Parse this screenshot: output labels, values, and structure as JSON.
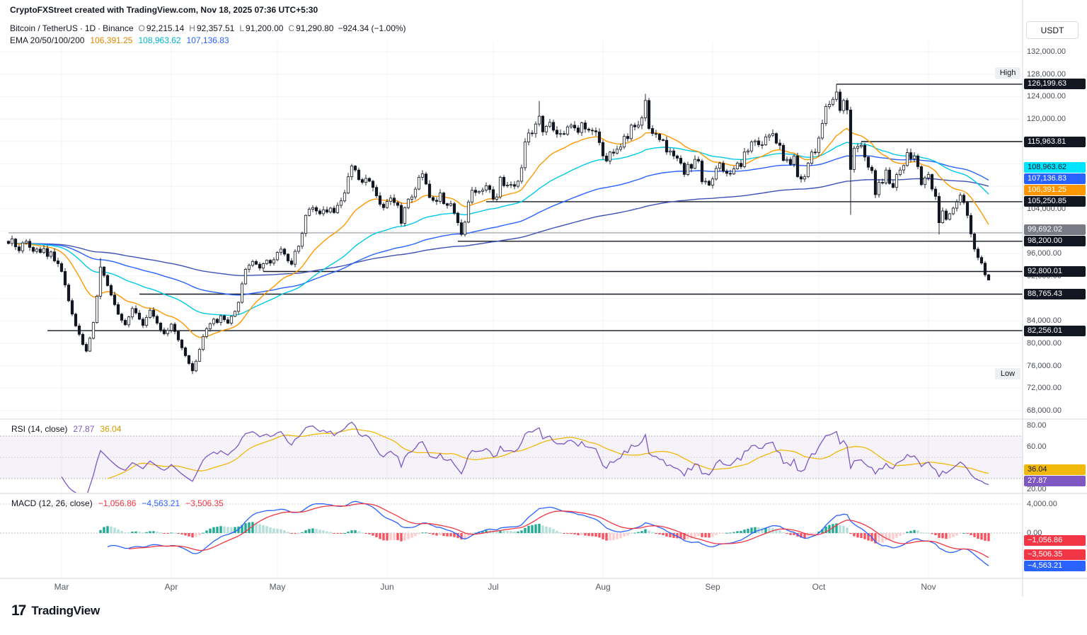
{
  "header": {
    "title": "CryptoFXStreet created with TradingView.com, Nov 18, 2025 07:36 UTC+5:30"
  },
  "toolbar": {
    "currency_label": "USDT"
  },
  "legend": {
    "symbol": "Bitcoin / TetherUS",
    "separator": "·",
    "interval": "1D",
    "exchange": "Binance",
    "open_label": "O",
    "open": "92,215.14",
    "high_label": "H",
    "high": "92,357.51",
    "low_label": "L",
    "low": "91,200.00",
    "close_label": "C",
    "close": "91,290.80",
    "change": "−924.34 (−1.00%)",
    "ema_label": "EMA 20/50/100/200",
    "ema20": "106,391.25",
    "ema50": "108,963.62",
    "ema100": "107,136.83"
  },
  "price_axis": {
    "plain_labels": [
      {
        "text": "132,000.00",
        "v": 132000
      },
      {
        "text": "128,000.00",
        "v": 128000
      },
      {
        "text": "124,000.00",
        "v": 124000
      },
      {
        "text": "120,000.00",
        "v": 120000
      },
      {
        "text": "104,000.00",
        "v": 104000
      },
      {
        "text": "96,000.00",
        "v": 96000
      },
      {
        "text": "92,000.00",
        "v": 92000
      },
      {
        "text": "84,000.00",
        "v": 84000
      },
      {
        "text": "80,000.00",
        "v": 80000
      },
      {
        "text": "76,000.00",
        "v": 76000
      },
      {
        "text": "72,000.00",
        "v": 72000
      },
      {
        "text": "68,000.00",
        "v": 68000
      }
    ],
    "badges": [
      {
        "text": "126,199.63",
        "v": 126199.63,
        "bg": "#131722",
        "fg": "#ffffff"
      },
      {
        "text": "115,963.81",
        "v": 115963.81,
        "bg": "#131722",
        "fg": "#ffffff"
      },
      {
        "text": "108,963.62",
        "v": 108963.62,
        "bg": "#00e5ff",
        "fg": "#131722"
      },
      {
        "text": "107,136.83",
        "v": 107136.83,
        "bg": "#2962ff",
        "fg": "#ffffff"
      },
      {
        "text": "106,391.25",
        "v": 106391.25,
        "bg": "#ff9800",
        "fg": "#ffffff"
      },
      {
        "text": "105,250.85",
        "v": 105250.85,
        "bg": "#131722",
        "fg": "#ffffff"
      },
      {
        "text": "99,692.02",
        "v": 99692.02,
        "bg": "#787b86",
        "fg": "#ffffff"
      },
      {
        "text": "98,200.00",
        "v": 98200,
        "bg": "#131722",
        "fg": "#ffffff"
      },
      {
        "text": "92,800.01",
        "v": 92800.01,
        "bg": "#131722",
        "fg": "#ffffff"
      },
      {
        "text": "88,765.43",
        "v": 88765.43,
        "bg": "#131722",
        "fg": "#ffffff"
      },
      {
        "text": "82,256.01",
        "v": 82256.01,
        "bg": "#131722",
        "fg": "#ffffff"
      }
    ],
    "high_tag": "High",
    "low_tag": "Low"
  },
  "rsi_panel": {
    "title": "RSI (14, close)",
    "value": "27.87",
    "ma_value": "36.04",
    "axis_labels": [
      {
        "text": "80.00",
        "v": 80
      },
      {
        "text": "60.00",
        "v": 60
      },
      {
        "text": "20.00",
        "v": 20
      }
    ],
    "badges": [
      {
        "text": "36.04",
        "v": 36.04,
        "bg": "#f0b90b",
        "fg": "#131722"
      },
      {
        "text": "27.87",
        "v": 27.87,
        "bg": "#7e57c2",
        "fg": "#ffffff"
      }
    ]
  },
  "macd_panel": {
    "title": "MACD (12, 26, close)",
    "hist_value": "−1,056.86",
    "macd_value": "−4,563.21",
    "signal_value": "−3,506.35",
    "axis_labels": [
      {
        "text": "4,000.00",
        "v": 4000
      },
      {
        "text": "0.00",
        "v": 0
      }
    ],
    "badges": [
      {
        "text": "−1,056.86",
        "v": -1056.86,
        "bg": "#f23645",
        "fg": "#ffffff"
      },
      {
        "text": "−3,506.35",
        "v": -3506.35,
        "bg": "#f23645",
        "fg": "#ffffff"
      },
      {
        "text": "−4,563.21",
        "v": -4563.21,
        "bg": "#2962ff",
        "fg": "#ffffff"
      }
    ]
  },
  "time_axis": {
    "labels": [
      {
        "text": "Mar",
        "i": 15
      },
      {
        "text": "Apr",
        "i": 46
      },
      {
        "text": "May",
        "i": 76
      },
      {
        "text": "Jun",
        "i": 107
      },
      {
        "text": "Jul",
        "i": 137
      },
      {
        "text": "Aug",
        "i": 168
      },
      {
        "text": "Sep",
        "i": 199
      },
      {
        "text": "Oct",
        "i": 229
      },
      {
        "text": "Nov",
        "i": 260
      }
    ]
  },
  "footer": {
    "mark": "17",
    "brand": "TradingView"
  },
  "chart_data": {
    "type": "candlestick",
    "title": "Bitcoin / TetherUS · 1D · Binance",
    "price_range": [
      68000,
      132000
    ],
    "visible_scale_step": 4000,
    "last": {
      "open": 92215.14,
      "high": 92357.51,
      "low": 91200.0,
      "close": 91290.8,
      "change": -924.34,
      "change_pct": -1.0
    },
    "high_value": 126199.63,
    "low_value": 74508,
    "first_open": 98200,
    "closes": [
      97800,
      98600,
      97200,
      96500,
      97900,
      98200,
      97100,
      96400,
      96800,
      96200,
      96900,
      95500,
      96300,
      94700,
      94200,
      92800,
      90400,
      87600,
      85200,
      83100,
      81600,
      79800,
      78600,
      80900,
      83700,
      88400,
      93600,
      92100,
      90300,
      88600,
      86900,
      85200,
      84100,
      83300,
      84700,
      86200,
      85400,
      84300,
      83200,
      84600,
      85900,
      84800,
      83600,
      82400,
      81700,
      82300,
      83400,
      82100,
      80600,
      79200,
      77800,
      76400,
      75100,
      76800,
      78900,
      81200,
      82600,
      83500,
      84300,
      83700,
      84900,
      84200,
      83600,
      84800,
      85700,
      87300,
      90600,
      93200,
      93900,
      94600,
      94100,
      93400,
      94200,
      94800,
      94300,
      94900,
      96200,
      96800,
      95900,
      94700,
      94100,
      96400,
      97300,
      99600,
      102800,
      103900,
      104200,
      103600,
      103100,
      103800,
      103400,
      104100,
      103300,
      104600,
      105400,
      106800,
      109700,
      111600,
      110900,
      109200,
      108700,
      109400,
      108900,
      107800,
      106300,
      104800,
      104200,
      105300,
      105900,
      105100,
      104600,
      101400,
      104200,
      105700,
      106100,
      107500,
      109600,
      110200,
      108400,
      106000,
      105500,
      105300,
      106800,
      104900,
      104600,
      104900,
      103200,
      101500,
      99400,
      101600,
      105200,
      107300,
      106900,
      107100,
      107300,
      108100,
      107400,
      105700,
      106100,
      109600,
      108100,
      108200,
      108300,
      108000,
      108900,
      111300,
      115900,
      117500,
      117400,
      119100,
      120500,
      117700,
      118700,
      119400,
      118000,
      117300,
      117400,
      117300,
      118600,
      118900,
      118400,
      117600,
      119300,
      118200,
      118000,
      117900,
      117700,
      115800,
      113400,
      112500,
      114100,
      113900,
      114600,
      115000,
      116900,
      116500,
      118900,
      118600,
      118900,
      120200,
      123300,
      118300,
      117400,
      117300,
      116300,
      116200,
      114100,
      114300,
      113400,
      113000,
      112100,
      110100,
      111900,
      111200,
      112800,
      112500,
      108800,
      108900,
      108200,
      109300,
      111200,
      112100,
      110700,
      110300,
      110200,
      111100,
      112100,
      111500,
      114100,
      114300,
      115900,
      116100,
      115400,
      115400,
      116800,
      117100,
      117400,
      115700,
      115300,
      112600,
      112800,
      111900,
      113400,
      109700,
      109300,
      109700,
      112100,
      114100,
      114000,
      116600,
      119200,
      122200,
      122600,
      123500,
      124800,
      121500,
      123300,
      121600,
      111000,
      114800,
      115100,
      115300,
      113200,
      111400,
      110800,
      106500,
      108700,
      108600,
      110900,
      108500,
      107800,
      110100,
      110900,
      111700,
      114000,
      112900,
      113400,
      111500,
      108300,
      109500,
      110100,
      107500,
      106200,
      101500,
      103600,
      102100,
      103100,
      104100,
      105200,
      106400,
      105100,
      102800,
      99500,
      96800,
      95300,
      94300,
      92215,
      91290.8
    ],
    "wick_overrides": {
      "26": {
        "high": 95200
      },
      "52": {
        "low": 74508
      },
      "97": {
        "high": 111980
      },
      "150": {
        "high": 123218
      },
      "180": {
        "high": 124474
      },
      "234": {
        "high": 126199.63
      },
      "238": {
        "low": 102900
      },
      "263": {
        "low": 99400
      },
      "277": {
        "open": 92215.14,
        "high": 92357.51,
        "low": 91200,
        "close": 91290.8
      }
    },
    "levels": [
      {
        "label": "126,199.63",
        "value": 126199.63,
        "start_index": 234,
        "color": "#131722",
        "width": 1.4
      },
      {
        "label": "115,963.81",
        "value": 115963.81,
        "start_index": 241,
        "color": "#131722",
        "width": 1.4
      },
      {
        "label": "105,250.85",
        "value": 105250.85,
        "start_index": 135,
        "color": "#131722",
        "width": 1.4
      },
      {
        "label": "99,692.02",
        "value": 99692.02,
        "start_index": 0,
        "color": "#9598a1",
        "width": 1.1
      },
      {
        "label": "98,200.00",
        "value": 98200,
        "start_index": 127,
        "color": "#131722",
        "width": 1.4
      },
      {
        "label": "92,800.01",
        "value": 92800.01,
        "start_index": 72,
        "color": "#131722",
        "width": 1.4
      },
      {
        "label": "88,765.43",
        "value": 88765.43,
        "start_index": 37,
        "color": "#131722",
        "width": 1.4
      },
      {
        "label": "82,256.01",
        "value": 82256.01,
        "start_index": 11,
        "color": "#131722",
        "width": 1.4
      }
    ],
    "emas": {
      "periods": [
        20,
        50,
        100,
        200
      ],
      "displayed_values": [
        106391.25,
        108963.62,
        107136.83
      ]
    },
    "ema_colors": [
      "#ff9800",
      "#00c9e8",
      "#2962ff",
      "#3f51b5"
    ],
    "rsi": {
      "period": 14,
      "source": "close",
      "value": 27.87,
      "ma_value": 36.04,
      "band": [
        30,
        70
      ],
      "scale_labels": [
        80,
        60,
        20
      ]
    },
    "macd": {
      "fast": 12,
      "slow": 26,
      "source": "close",
      "histogram": -1056.86,
      "macd": -4563.21,
      "signal": -3506.35,
      "scale_labels": [
        4000,
        0
      ]
    }
  }
}
